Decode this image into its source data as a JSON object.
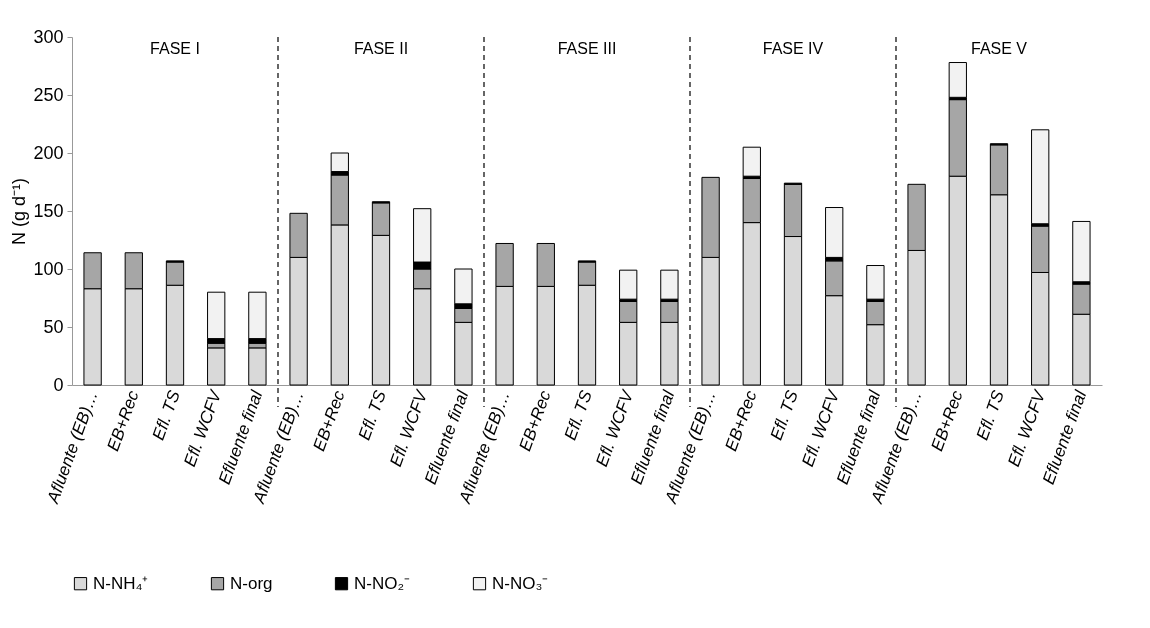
{
  "chart_data": {
    "type": "bar",
    "stacked": true,
    "ylabel": "N (g d⁻¹)",
    "ylim": [
      0,
      300
    ],
    "yticks": [
      0,
      50,
      100,
      150,
      200,
      250,
      300
    ],
    "grid": false,
    "legend": "bottom",
    "categories": [
      "Afluente (EB)…",
      "EB+Rec",
      "Efl. TS",
      "Efl. WCFV",
      "Efluente final",
      "Afluente (EB)…",
      "EB+Rec",
      "Efl. TS",
      "Efl. WCFV",
      "Efluente final",
      "Afluente (EB)…",
      "EB+Rec",
      "Efl. TS",
      "Efl. WCFV",
      "Efluente final",
      "Afluente (EB)…",
      "EB+Rec",
      "Efl. TS",
      "Efl. WCFV",
      "Efluente final",
      "Afluente (EB)…",
      "EB+Rec",
      "Efl. TS",
      "Efl. WCFV",
      "Efluente final"
    ],
    "series": [
      {
        "name": "N-NH₄⁺",
        "color": "#d9d9d9",
        "values": [
          83,
          83,
          86,
          32,
          32,
          110,
          138,
          129,
          83,
          54,
          85,
          85,
          86,
          54,
          54,
          110,
          140,
          128,
          77,
          52,
          116,
          180,
          164,
          97,
          61
        ]
      },
      {
        "name": "N-org",
        "color": "#a6a6a6",
        "values": [
          31,
          31,
          20,
          4,
          4,
          38,
          43,
          28,
          17,
          12,
          37,
          37,
          20,
          18,
          18,
          69,
          38,
          45,
          30,
          20,
          57,
          66,
          43,
          40,
          26
        ]
      },
      {
        "name": "N-NO₂⁻",
        "color": "#000000",
        "values": [
          null,
          null,
          1,
          4,
          4,
          null,
          3,
          1,
          6,
          4,
          null,
          null,
          1,
          2,
          2,
          null,
          2,
          1,
          3,
          2,
          null,
          2,
          1,
          2,
          2
        ]
      },
      {
        "name": "N-NO₃⁻",
        "color": "#f2f2f2",
        "values": [
          null,
          null,
          null,
          40,
          40,
          null,
          16,
          null,
          46,
          30,
          null,
          null,
          null,
          25,
          25,
          null,
          25,
          null,
          43,
          29,
          null,
          30,
          null,
          81,
          52
        ]
      }
    ],
    "annotations": [
      "FASE I",
      "FASE II",
      "FASE III",
      "FASE IV",
      "FASE V"
    ]
  }
}
